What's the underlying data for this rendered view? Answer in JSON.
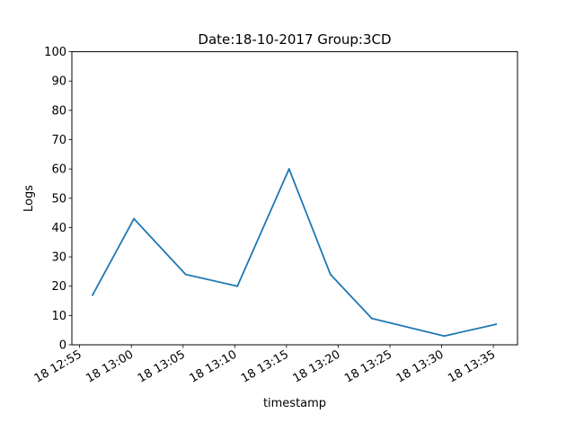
{
  "chart_data": {
    "type": "line",
    "title": "Date:18-10-2017  Group:3CD",
    "xlabel": "timestamp",
    "ylabel": "Logs",
    "ylim": [
      0,
      100
    ],
    "yticks": [
      0,
      10,
      20,
      30,
      40,
      50,
      60,
      70,
      80,
      90,
      100
    ],
    "xlim": [
      "2017-10-18 12:54:15",
      "2017-10-18 13:37:20"
    ],
    "xticks": [
      {
        "time": "2017-10-18 12:55",
        "label": "18 12:55"
      },
      {
        "time": "2017-10-18 13:00",
        "label": "18 13:00"
      },
      {
        "time": "2017-10-18 13:05",
        "label": "18 13:05"
      },
      {
        "time": "2017-10-18 13:10",
        "label": "18 13:10"
      },
      {
        "time": "2017-10-18 13:15",
        "label": "18 13:15"
      },
      {
        "time": "2017-10-18 13:20",
        "label": "18 13:20"
      },
      {
        "time": "2017-10-18 13:25",
        "label": "18 13:25"
      },
      {
        "time": "2017-10-18 13:30",
        "label": "18 13:30"
      },
      {
        "time": "2017-10-18 13:35",
        "label": "18 13:35"
      }
    ],
    "grid": false,
    "series": [
      {
        "color": "#1f77b4",
        "x": [
          "2017-10-18 12:56:15",
          "2017-10-18 13:00:15",
          "2017-10-18 13:05:15",
          "2017-10-18 13:10:15",
          "2017-10-18 13:15:15",
          "2017-10-18 13:19:15",
          "2017-10-18 13:23:15",
          "2017-10-18 13:30:15",
          "2017-10-18 13:35:15"
        ],
        "values": [
          17,
          43,
          24,
          20,
          60,
          24,
          9,
          3,
          7
        ]
      }
    ]
  }
}
